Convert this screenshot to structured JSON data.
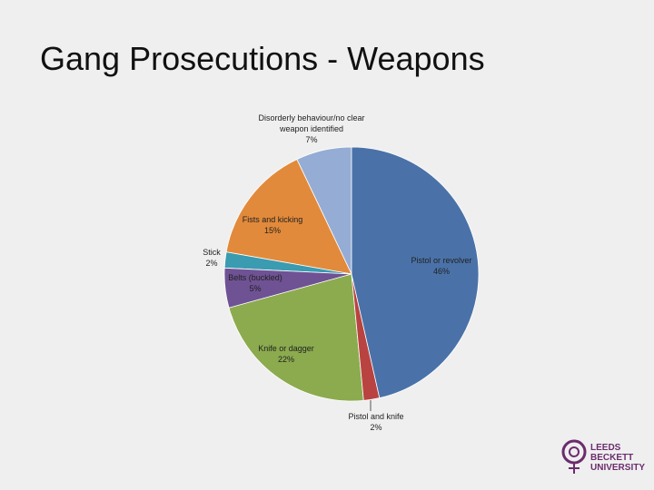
{
  "chart_data": {
    "type": "pie",
    "title": "Gang Prosecutions - Weapons",
    "categories": [
      "Pistol or revolver",
      "Pistol and knife",
      "Knife or dagger",
      "Belts (buckled)",
      "Stick",
      "Fists and kicking",
      "Disorderly behaviour/no clear weapon identified"
    ],
    "values": [
      46,
      2,
      22,
      5,
      2,
      15,
      7
    ],
    "value_labels": [
      "46%",
      "2%",
      "22%",
      "5%",
      "2%",
      "15%",
      "7%"
    ],
    "colors": [
      "#4a72a8",
      "#b94340",
      "#8bab4e",
      "#6f5294",
      "#3b9bb0",
      "#e28a3b",
      "#95acd4"
    ]
  },
  "logo": {
    "lines": [
      "LEEDS",
      "BECKETT",
      "UNIVERSITY"
    ]
  }
}
